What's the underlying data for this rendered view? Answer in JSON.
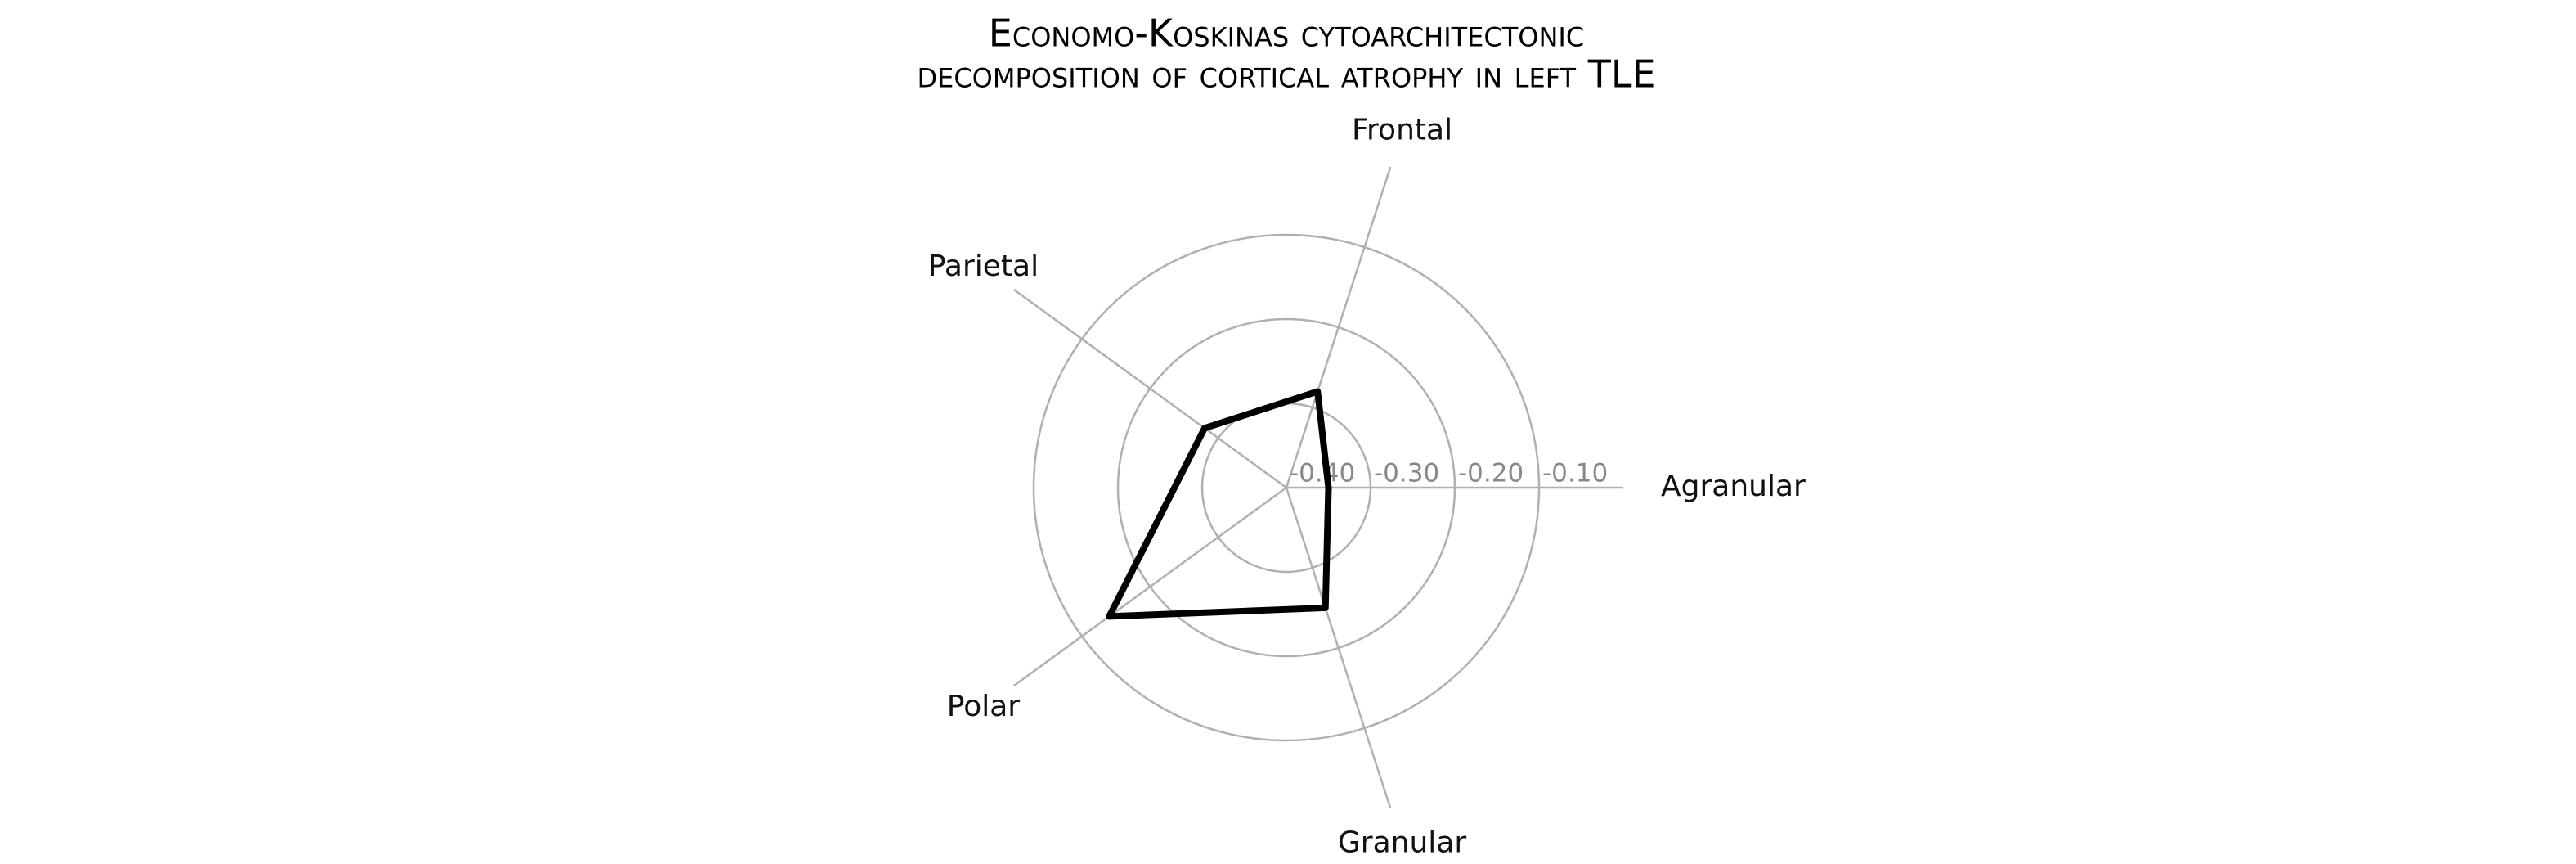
{
  "chart_data": {
    "type": "radar",
    "title": [
      "Economo-Koskinas cytoarchitectonic",
      "decomposition of cortical atrophy in left TLE"
    ],
    "categories": [
      "Agranular",
      "Frontal",
      "Parietal",
      "Polar",
      "Granular"
    ],
    "values": [
      -0.35,
      -0.28,
      -0.28,
      -0.14,
      -0.25
    ],
    "color": "#000000",
    "rlim": [
      -0.4,
      0.0
    ],
    "rticks": [
      {
        "value": -0.4,
        "label": "-0.40"
      },
      {
        "value": -0.3,
        "label": "-0.30"
      },
      {
        "value": -0.2,
        "label": "-0.20"
      },
      {
        "value": -0.1,
        "label": "-0.10"
      }
    ],
    "grid": true
  }
}
